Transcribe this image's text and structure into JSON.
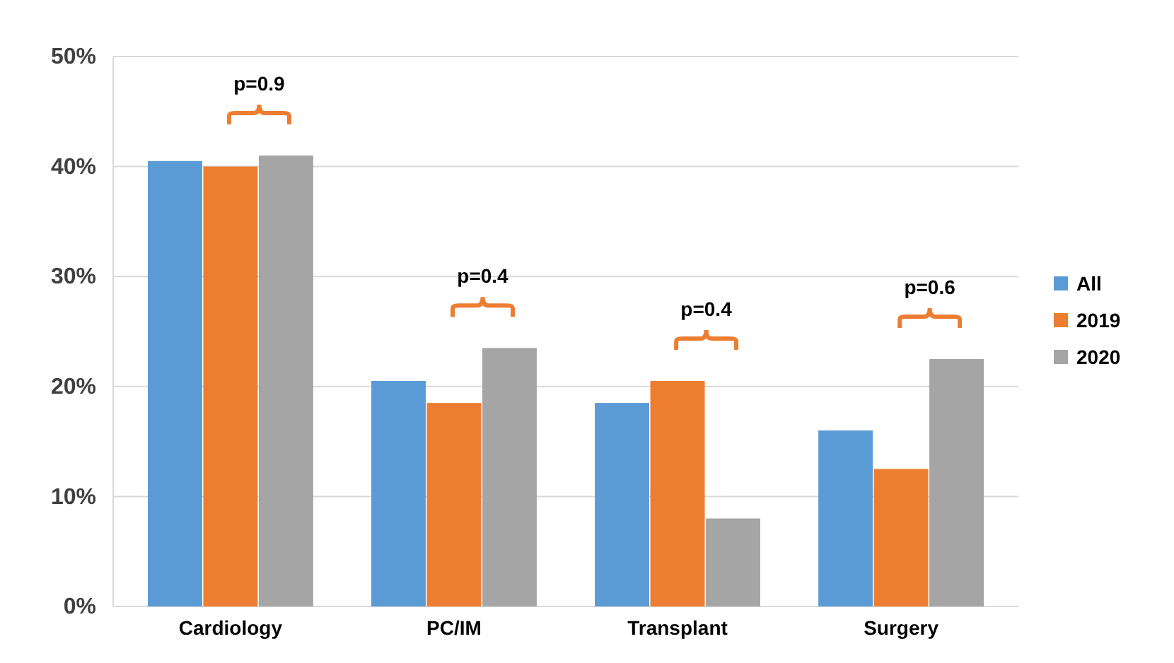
{
  "chart_data": {
    "type": "bar",
    "categories": [
      "Cardiology",
      "PC/IM",
      "Transplant",
      "Surgery"
    ],
    "series": [
      {
        "name": "All",
        "color": "#5b9bd5",
        "values": [
          40.5,
          20.5,
          18.5,
          16
        ]
      },
      {
        "name": "2019",
        "color": "#ed7d31",
        "values": [
          40,
          18.5,
          20.5,
          12.5
        ]
      },
      {
        "name": "2020",
        "color": "#a5a5a5",
        "values": [
          41,
          23.5,
          8,
          22.5
        ]
      }
    ],
    "ylim": [
      0,
      50
    ],
    "yticks": [
      {
        "value": 0,
        "label": "0%"
      },
      {
        "value": 10,
        "label": "10%"
      },
      {
        "value": 20,
        "label": "20%"
      },
      {
        "value": 30,
        "label": "30%"
      },
      {
        "value": 40,
        "label": "40%"
      },
      {
        "value": 50,
        "label": "50%"
      }
    ],
    "grid": "y",
    "legend": "right",
    "annotations": [
      "p=0.9",
      "p=0.4",
      "p=0.4",
      "p=0.6"
    ]
  }
}
